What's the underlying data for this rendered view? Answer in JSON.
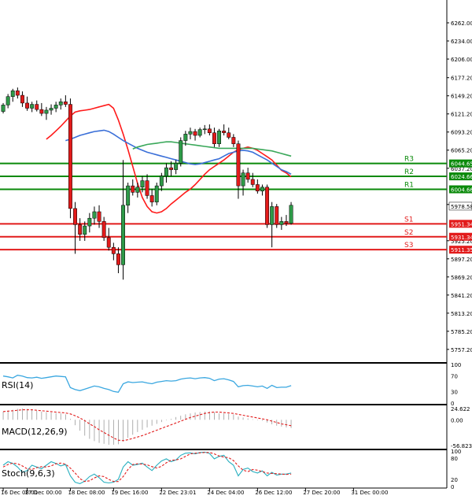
{
  "chart_data": [
    {
      "id": "price",
      "type": "candlestick",
      "ylim": [
        5740,
        6290
      ],
      "y_ticks": [
        "6262.00",
        "6234.00",
        "6206.00",
        "6177.20",
        "6149.20",
        "6121.20",
        "6093.20",
        "6065.20",
        "6037.20",
        "5981.20",
        "5925.20",
        "5897.20",
        "5869.20",
        "5841.20",
        "5813.20",
        "5785.20",
        "5757.20"
      ],
      "x_labels": [
        {
          "i": 0,
          "text": "16 Dec 08:01"
        },
        {
          "i": 5,
          "text": "17 Dec 00:00"
        },
        {
          "i": 14,
          "text": "18 Dec 08:00"
        },
        {
          "i": 23,
          "text": "19 Dec 16:00"
        },
        {
          "i": 33,
          "text": "22 Dec 23:01"
        },
        {
          "i": 43,
          "text": "24 Dec 04:00"
        },
        {
          "i": 53,
          "text": "26 Dec 12:00"
        },
        {
          "i": 63,
          "text": "27 Dec 20:00"
        },
        {
          "i": 73,
          "text": "31 Dec 00:00"
        }
      ],
      "candles": [
        [
          6125,
          6138,
          6122,
          6135
        ],
        [
          6135,
          6152,
          6130,
          6148
        ],
        [
          6148,
          6160,
          6140,
          6157
        ],
        [
          6157,
          6162,
          6145,
          6150
        ],
        [
          6150,
          6156,
          6132,
          6138
        ],
        [
          6138,
          6148,
          6126,
          6130
        ],
        [
          6130,
          6140,
          6124,
          6136
        ],
        [
          6136,
          6142,
          6125,
          6128
        ],
        [
          6128,
          6138,
          6118,
          6122
        ],
        [
          6122,
          6132,
          6112,
          6127
        ],
        [
          6127,
          6136,
          6120,
          6130
        ],
        [
          6130,
          6140,
          6124,
          6135
        ],
        [
          6135,
          6145,
          6128,
          6140
        ],
        [
          6140,
          6150,
          6132,
          6136
        ],
        [
          6136,
          6145,
          5960,
          5975
        ],
        [
          5975,
          5985,
          5905,
          5950
        ],
        [
          5950,
          5960,
          5925,
          5935
        ],
        [
          5935,
          5955,
          5925,
          5948
        ],
        [
          5948,
          5968,
          5938,
          5960
        ],
        [
          5960,
          5978,
          5950,
          5970
        ],
        [
          5970,
          5980,
          5945,
          5955
        ],
        [
          5955,
          5962,
          5925,
          5930
        ],
        [
          5930,
          5945,
          5910,
          5915
        ],
        [
          5915,
          5922,
          5895,
          5905
        ],
        [
          5905,
          5915,
          5875,
          5888
        ],
        [
          5888,
          6050,
          5865,
          5980
        ],
        [
          5980,
          6015,
          5968,
          6010
        ],
        [
          6010,
          6020,
          5995,
          6000
        ],
        [
          6000,
          6015,
          5992,
          6008
        ],
        [
          6008,
          6025,
          6000,
          6018
        ],
        [
          6018,
          6028,
          5990,
          5995
        ],
        [
          5995,
          6005,
          5978,
          5985
        ],
        [
          5985,
          6015,
          5980,
          6010
        ],
        [
          6010,
          6030,
          6002,
          6025
        ],
        [
          6025,
          6045,
          6015,
          6038
        ],
        [
          6038,
          6048,
          6025,
          6035
        ],
        [
          6035,
          6050,
          6028,
          6045
        ],
        [
          6045,
          6085,
          6040,
          6080
        ],
        [
          6080,
          6095,
          6072,
          6090
        ],
        [
          6090,
          6100,
          6082,
          6094
        ],
        [
          6094,
          6098,
          6080,
          6088
        ],
        [
          6088,
          6100,
          6085,
          6097
        ],
        [
          6097,
          6104,
          6090,
          6098
        ],
        [
          6098,
          6105,
          6088,
          6092
        ],
        [
          6092,
          6100,
          6070,
          6075
        ],
        [
          6075,
          6098,
          6070,
          6095
        ],
        [
          6095,
          6105,
          6088,
          6092
        ],
        [
          6092,
          6100,
          6082,
          6085
        ],
        [
          6085,
          6090,
          6070,
          6075
        ],
        [
          6075,
          6080,
          5990,
          6010
        ],
        [
          6010,
          6035,
          5995,
          6030
        ],
        [
          6030,
          6038,
          6015,
          6020
        ],
        [
          6020,
          6030,
          6008,
          6012
        ],
        [
          6012,
          6020,
          5998,
          6002
        ],
        [
          6002,
          6012,
          5995,
          6008
        ],
        [
          6008,
          6012,
          5945,
          5950
        ],
        [
          5950,
          5985,
          5915,
          5978
        ],
        [
          5978,
          5982,
          5945,
          5950
        ],
        [
          5950,
          5962,
          5942,
          5955
        ],
        [
          5955,
          5965,
          5948,
          5952
        ],
        [
          5952,
          5985,
          5950,
          5980
        ]
      ],
      "moving_averages": [
        {
          "name": "MA-red",
          "color": "#ff1a1a",
          "values": [
            6082,
            6088,
            6095,
            6102,
            6110,
            6118,
            6124,
            6126,
            6127,
            6128,
            6130,
            6132,
            6134,
            6136,
            6130,
            6112,
            6090,
            6066,
            6040,
            6014,
            5992,
            5978,
            5970,
            5968,
            5970,
            5975,
            5982,
            5988,
            5994,
            6000,
            6005,
            6012,
            6020,
            6028,
            6035,
            6040,
            6045,
            6050,
            6056,
            6062,
            6066,
            6068,
            6070,
            6068,
            6065,
            6060,
            6055,
            6050,
            6042,
            6034,
            6030,
            6024
          ]
        },
        {
          "name": "MA-blue",
          "color": "#3a6fd8",
          "values": [
            6080,
            6082,
            6085,
            6088,
            6090,
            6092,
            6094,
            6095,
            6096,
            6094,
            6090,
            6085,
            6080,
            6076,
            6072,
            6068,
            6065,
            6062,
            6060,
            6058,
            6056,
            6054,
            6052,
            6050,
            6048,
            6046,
            6044,
            6043,
            6044,
            6046,
            6048,
            6050,
            6052,
            6056,
            6060,
            6062,
            6064,
            6065,
            6064,
            6062,
            6058,
            6054,
            6050,
            6045,
            6040,
            6035,
            6032,
            6028
          ]
        },
        {
          "name": "MA-green",
          "color": "#3aa85a",
          "values": [
            6067,
            6070,
            6072,
            6074,
            6075,
            6076,
            6077,
            6078,
            6078,
            6077,
            6076,
            6075,
            6074,
            6073,
            6072,
            6071,
            6070,
            6069,
            6068,
            6068,
            6068,
            6068,
            6068,
            6068,
            6068,
            6068,
            6067,
            6066,
            6065,
            6064,
            6062,
            6060,
            6058,
            6056
          ]
        }
      ],
      "current_price": "5978.58",
      "levels": [
        {
          "name": "R3",
          "value": 6044.65,
          "label": "6044.65",
          "color": "#0a8a0a"
        },
        {
          "name": "R2",
          "value": 6024.66,
          "label": "6024.66",
          "color": "#0a8a0a"
        },
        {
          "name": "R1",
          "value": 6004.66,
          "label": "6004.66",
          "color": "#0a8a0a"
        },
        {
          "name": "S1",
          "value": 5951.34,
          "label": "5951.34",
          "color": "#e21b1b"
        },
        {
          "name": "S2",
          "value": 5931.34,
          "label": "5931.34",
          "color": "#e21b1b"
        },
        {
          "name": "S3",
          "value": 5911.35,
          "label": "5911.35",
          "color": "#e21b1b"
        }
      ]
    },
    {
      "id": "rsi",
      "type": "line",
      "title": "RSI(14)",
      "ylim": [
        0,
        100
      ],
      "y_ticks": [
        "100",
        "70",
        "30",
        "0"
      ],
      "values": [
        70,
        68,
        65,
        72,
        70,
        66,
        65,
        67,
        64,
        66,
        68,
        70,
        69,
        68,
        40,
        35,
        32,
        36,
        40,
        44,
        42,
        38,
        35,
        30,
        28,
        50,
        55,
        53,
        54,
        55,
        52,
        50,
        54,
        56,
        58,
        57,
        58,
        62,
        64,
        65,
        63,
        65,
        66,
        64,
        58,
        62,
        63,
        60,
        56,
        42,
        45,
        46,
        44,
        42,
        44,
        38,
        46,
        40,
        41,
        41,
        45
      ]
    },
    {
      "id": "macd",
      "type": "line",
      "title": "MACD(12,26,9)",
      "ylim": [
        -62,
        30
      ],
      "y_ticks": [
        "24.622",
        "0.00",
        "-56.823"
      ],
      "bars": [
        18,
        20,
        22,
        24,
        25,
        24,
        22,
        20,
        18,
        17,
        16,
        15,
        14,
        12,
        2,
        -12,
        -24,
        -35,
        -42,
        -47,
        -51,
        -53,
        -55,
        -55,
        -54,
        -48,
        -40,
        -33,
        -27,
        -22,
        -17,
        -13,
        -9,
        -5,
        -1,
        2,
        6,
        9,
        12,
        14,
        16,
        17,
        18,
        18,
        17,
        14,
        14,
        13,
        12,
        7,
        5,
        3,
        1,
        -1,
        -2,
        -6,
        -10,
        -13,
        -15,
        -17,
        -18
      ],
      "signal": [
        18,
        19,
        20,
        21,
        22,
        22,
        22,
        21,
        20,
        19,
        18,
        17,
        16,
        15,
        13,
        9,
        4,
        -2,
        -9,
        -15,
        -22,
        -28,
        -34,
        -40,
        -45,
        -46,
        -44,
        -41,
        -38,
        -35,
        -31,
        -27,
        -23,
        -19,
        -15,
        -11,
        -7,
        -3,
        1,
        5,
        8,
        11,
        14,
        16,
        17,
        17,
        16,
        15,
        14,
        12,
        10,
        8,
        6,
        4,
        2,
        0,
        -3,
        -6,
        -9,
        -11,
        -13
      ]
    },
    {
      "id": "stoch",
      "type": "line",
      "title": "Stoch(9,6,3)",
      "ylim": [
        0,
        100
      ],
      "y_ticks": [
        "100",
        "80",
        "20",
        "0"
      ],
      "k": [
        60,
        70,
        65,
        55,
        40,
        45,
        60,
        55,
        50,
        60,
        70,
        65,
        58,
        62,
        30,
        12,
        8,
        15,
        28,
        35,
        25,
        12,
        10,
        12,
        20,
        55,
        70,
        60,
        62,
        66,
        55,
        45,
        60,
        72,
        78,
        70,
        75,
        88,
        94,
        95,
        92,
        96,
        97,
        93,
        78,
        85,
        88,
        70,
        60,
        30,
        48,
        52,
        42,
        38,
        44,
        30,
        40,
        32,
        35,
        35,
        38
      ],
      "d": [
        55,
        62,
        66,
        64,
        58,
        50,
        48,
        53,
        56,
        55,
        58,
        64,
        66,
        63,
        52,
        38,
        22,
        14,
        16,
        24,
        30,
        28,
        20,
        14,
        14,
        28,
        48,
        62,
        64,
        63,
        61,
        56,
        52,
        57,
        67,
        74,
        75,
        78,
        85,
        92,
        94,
        95,
        96,
        96,
        92,
        86,
        83,
        81,
        73,
        58,
        46,
        42,
        48,
        46,
        42,
        38,
        37,
        36,
        35,
        34,
        35
      ]
    }
  ]
}
